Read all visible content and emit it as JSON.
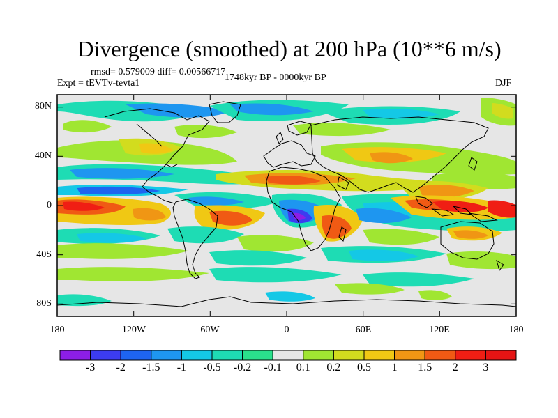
{
  "header": {
    "title": "Divergence (smoothed) at 200 hPa (10**6 m/s)",
    "stats": "rmsd= 0.579009 diff= 0.00566717",
    "experiment": "Expt = tEVTv-tevta1",
    "period": "1748kyr BP - 0000kyr BP",
    "season": "DJF"
  },
  "map": {
    "projection": "cylindrical equidistant",
    "lon_range": [
      -180,
      180
    ],
    "lat_range": [
      -90,
      90
    ],
    "lat_ticks": [
      "80N",
      "40N",
      "0",
      "40S",
      "80S"
    ],
    "lon_ticks": [
      "180",
      "120W",
      "60W",
      "0",
      "60E",
      "120E",
      "180"
    ]
  },
  "colorbar": {
    "labels": [
      "-3",
      "-2",
      "-1.5",
      "-1",
      "-0.5",
      "-0.2",
      "-0.1",
      "0.1",
      "0.2",
      "0.5",
      "1",
      "1.5",
      "2",
      "3"
    ],
    "colors": [
      "#8c1ee6",
      "#3c3cf0",
      "#1e64f0",
      "#1e96f0",
      "#14c8e6",
      "#1edcb4",
      "#2ae08c",
      "#e6e6e6",
      "#a0e632",
      "#d2dc1e",
      "#f0c814",
      "#f09614",
      "#f05a14",
      "#f01e14",
      "#e61414"
    ]
  }
}
